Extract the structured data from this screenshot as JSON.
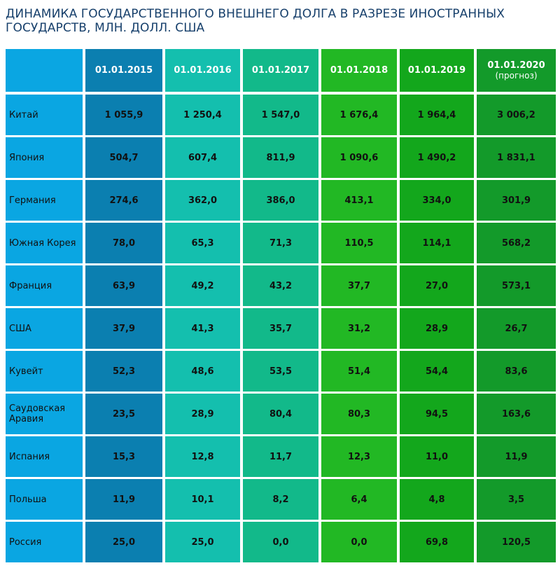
{
  "title_line1": "ДИНАМИКА ГОСУДАРСТВЕННОГО ВНЕШНЕГО ДОЛГА В РАЗРЕЗЕ ИНОСТРАННЫХ",
  "title_line2": "ГОСУДАРСТВ, МЛН. ДОЛЛ. США",
  "colors": {
    "country_col": "#0aa6e2",
    "columns": [
      "#0b7fb0",
      "#14bfae",
      "#12b98a",
      "#22b824",
      "#13a71c",
      "#139a2a"
    ]
  },
  "chart_data": {
    "type": "table",
    "columns": [
      {
        "label": "01.01.2015",
        "sub": ""
      },
      {
        "label": "01.01.2016",
        "sub": ""
      },
      {
        "label": "01.01.2017",
        "sub": ""
      },
      {
        "label": "01.01.2018",
        "sub": ""
      },
      {
        "label": "01.01.2019",
        "sub": ""
      },
      {
        "label": "01.01.2020",
        "sub": "(прогноз)"
      }
    ],
    "rows": [
      {
        "country": "Китай",
        "values": [
          "1 055,9",
          "1 250,4",
          "1 547,0",
          "1 676,4",
          "1 964,4",
          "3 006,2"
        ]
      },
      {
        "country": "Япония",
        "values": [
          "504,7",
          "607,4",
          "811,9",
          "1 090,6",
          "1 490,2",
          "1 831,1"
        ]
      },
      {
        "country": "Германия",
        "values": [
          "274,6",
          "362,0",
          "386,0",
          "413,1",
          "334,0",
          "301,9"
        ]
      },
      {
        "country": "Южная Корея",
        "values": [
          "78,0",
          "65,3",
          "71,3",
          "110,5",
          "114,1",
          "568,2"
        ]
      },
      {
        "country": "Франция",
        "values": [
          "63,9",
          "49,2",
          "43,2",
          "37,7",
          "27,0",
          "573,1"
        ]
      },
      {
        "country": "США",
        "values": [
          "37,9",
          "41,3",
          "35,7",
          "31,2",
          "28,9",
          "26,7"
        ]
      },
      {
        "country": "Кувейт",
        "values": [
          "52,3",
          "48,6",
          "53,5",
          "51,4",
          "54,4",
          "83,6"
        ]
      },
      {
        "country": "Саудовская Аравия",
        "values": [
          "23,5",
          "28,9",
          "80,4",
          "80,3",
          "94,5",
          "163,6"
        ]
      },
      {
        "country": "Испания",
        "values": [
          "15,3",
          "12,8",
          "11,7",
          "12,3",
          "11,0",
          "11,9"
        ]
      },
      {
        "country": "Польша",
        "values": [
          "11,9",
          "10,1",
          "8,2",
          "6,4",
          "4,8",
          "3,5"
        ]
      },
      {
        "country": "Россия",
        "values": [
          "25,0",
          "25,0",
          "0,0",
          "0,0",
          "69,8",
          "120,5"
        ]
      }
    ]
  }
}
